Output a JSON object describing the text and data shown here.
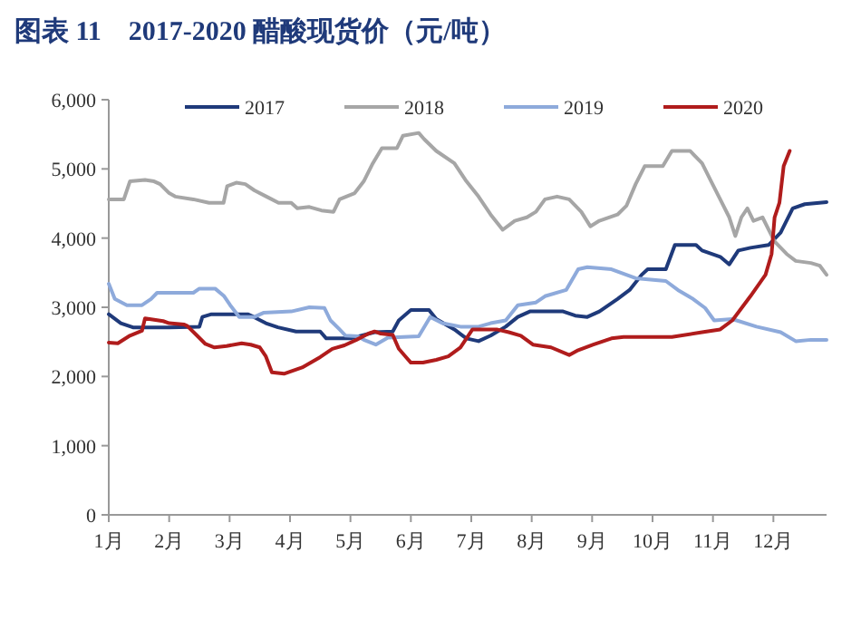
{
  "chart_data": {
    "type": "line",
    "title": "图表 11　2017-2020 醋酸现货价（元/吨）",
    "xlim": [
      1,
      12.88
    ],
    "xticks": [
      {
        "value": 1,
        "label": "1月"
      },
      {
        "value": 2,
        "label": "2月"
      },
      {
        "value": 3,
        "label": "3月"
      },
      {
        "value": 4,
        "label": "4月"
      },
      {
        "value": 5,
        "label": "5月"
      },
      {
        "value": 6,
        "label": "6月"
      },
      {
        "value": 7,
        "label": "7月"
      },
      {
        "value": 8,
        "label": "8月"
      },
      {
        "value": 9,
        "label": "9月"
      },
      {
        "value": 10,
        "label": "10月"
      },
      {
        "value": 11,
        "label": "11月"
      },
      {
        "value": 12,
        "label": "12月"
      }
    ],
    "ylim": [
      0,
      6000
    ],
    "yticks": [
      0,
      {
        "value": 1000,
        "label": "1,000"
      },
      {
        "value": 2000,
        "label": "2,000"
      },
      {
        "value": 3000,
        "label": "3,000"
      },
      {
        "value": 4000,
        "label": "4,000"
      },
      {
        "value": 5000,
        "label": "5,000"
      },
      {
        "value": 6000,
        "label": "6,000"
      }
    ],
    "grid": false,
    "legend": "top",
    "marker": "none",
    "line_style": "solid",
    "series": [
      {
        "name": "2017",
        "color": "#1f3a7a",
        "x": [
          1,
          1.2,
          1.4,
          2.0,
          2.5,
          2.55,
          2.7,
          3.3,
          3.4,
          3.6,
          3.8,
          4.1,
          4.5,
          4.6,
          5.0,
          5.4,
          5.7,
          5.8,
          6.0,
          6.3,
          6.42,
          6.72,
          6.92,
          7.12,
          7.32,
          7.57,
          7.77,
          7.97,
          8.52,
          8.72,
          8.92,
          9.12,
          9.42,
          9.62,
          9.82,
          9.92,
          10.22,
          10.37,
          10.72,
          10.82,
          11.12,
          11.27,
          11.42,
          11.62,
          11.92,
          12.12,
          12.32,
          12.52,
          12.88
        ],
        "values": [
          2900,
          2770,
          2710,
          2710,
          2720,
          2860,
          2900,
          2900,
          2860,
          2770,
          2710,
          2650,
          2650,
          2550,
          2550,
          2640,
          2650,
          2810,
          2960,
          2960,
          2830,
          2680,
          2550,
          2510,
          2590,
          2720,
          2860,
          2940,
          2940,
          2880,
          2860,
          2940,
          3120,
          3250,
          3470,
          3550,
          3550,
          3900,
          3900,
          3820,
          3730,
          3620,
          3820,
          3860,
          3900,
          4080,
          4430,
          4490,
          4520
        ]
      },
      {
        "name": "2018",
        "color": "#a6a6a6",
        "x": [
          1,
          1.25,
          1.35,
          1.6,
          1.75,
          1.85,
          2.0,
          2.1,
          2.4,
          2.66,
          2.9,
          2.96,
          3.11,
          3.26,
          3.41,
          3.61,
          3.81,
          4.02,
          4.12,
          4.32,
          4.52,
          4.72,
          4.82,
          5.07,
          5.22,
          5.37,
          5.52,
          5.77,
          5.87,
          6.13,
          6.22,
          6.42,
          6.72,
          6.92,
          7.12,
          7.32,
          7.52,
          7.72,
          7.92,
          8.07,
          8.22,
          8.42,
          8.62,
          8.82,
          8.97,
          9.12,
          9.42,
          9.57,
          9.72,
          9.87,
          10.17,
          10.32,
          10.62,
          10.82,
          10.97,
          11.12,
          11.27,
          11.37,
          11.47,
          11.57,
          11.67,
          11.82,
          12.02,
          12.22,
          12.37,
          12.62,
          12.77,
          12.88
        ],
        "values": [
          4560,
          4560,
          4820,
          4840,
          4820,
          4780,
          4650,
          4600,
          4560,
          4510,
          4510,
          4750,
          4800,
          4780,
          4690,
          4600,
          4510,
          4510,
          4430,
          4450,
          4400,
          4380,
          4560,
          4650,
          4820,
          5080,
          5300,
          5300,
          5480,
          5520,
          5430,
          5260,
          5080,
          4820,
          4600,
          4340,
          4120,
          4250,
          4300,
          4380,
          4560,
          4600,
          4560,
          4380,
          4170,
          4250,
          4340,
          4470,
          4780,
          5040,
          5040,
          5260,
          5260,
          5080,
          4820,
          4560,
          4300,
          4030,
          4300,
          4430,
          4250,
          4300,
          3950,
          3770,
          3670,
          3640,
          3600,
          3470
        ]
      },
      {
        "name": "2019",
        "color": "#8eaadb",
        "x": [
          1,
          1.1,
          1.3,
          1.55,
          1.7,
          1.8,
          2.4,
          2.5,
          2.76,
          2.91,
          3.01,
          3.16,
          3.41,
          3.56,
          4.02,
          4.32,
          4.57,
          4.67,
          4.82,
          4.92,
          5.12,
          5.22,
          5.42,
          5.62,
          6.13,
          6.32,
          6.52,
          6.82,
          7.12,
          7.32,
          7.57,
          7.77,
          8.07,
          8.22,
          8.57,
          8.77,
          8.92,
          9.32,
          9.72,
          10.22,
          10.42,
          10.67,
          10.87,
          11.02,
          11.32,
          11.72,
          12.12,
          12.37,
          12.62,
          12.88
        ],
        "values": [
          3340,
          3120,
          3030,
          3030,
          3120,
          3210,
          3210,
          3270,
          3270,
          3160,
          3030,
          2860,
          2860,
          2920,
          2940,
          3000,
          2990,
          2810,
          2680,
          2590,
          2580,
          2530,
          2460,
          2560,
          2580,
          2860,
          2770,
          2720,
          2720,
          2770,
          2810,
          3030,
          3070,
          3160,
          3250,
          3550,
          3580,
          3550,
          3420,
          3380,
          3250,
          3120,
          2990,
          2810,
          2830,
          2720,
          2640,
          2510,
          2530,
          2530
        ]
      },
      {
        "name": "2020",
        "color": "#b01c1c",
        "x": [
          1,
          1.15,
          1.35,
          1.55,
          1.6,
          1.9,
          2.0,
          2.25,
          2.3,
          2.45,
          2.6,
          2.75,
          2.95,
          3.2,
          3.35,
          3.5,
          3.6,
          3.7,
          3.9,
          4.2,
          4.5,
          4.7,
          4.9,
          5.1,
          5.3,
          5.4,
          5.5,
          5.7,
          5.8,
          5.9,
          6.0,
          6.2,
          6.42,
          6.62,
          6.82,
          7.02,
          7.42,
          7.62,
          7.82,
          8.02,
          8.32,
          8.62,
          8.77,
          9.02,
          9.32,
          9.52,
          10.32,
          10.82,
          11.12,
          11.32,
          11.62,
          11.87,
          11.97,
          12.02,
          12.1,
          12.17,
          12.27
        ],
        "values": [
          2490,
          2480,
          2590,
          2660,
          2840,
          2800,
          2770,
          2750,
          2730,
          2600,
          2470,
          2420,
          2440,
          2480,
          2460,
          2420,
          2290,
          2060,
          2040,
          2130,
          2280,
          2400,
          2450,
          2530,
          2620,
          2650,
          2620,
          2600,
          2400,
          2300,
          2200,
          2200,
          2240,
          2290,
          2420,
          2680,
          2680,
          2640,
          2590,
          2460,
          2420,
          2310,
          2380,
          2460,
          2550,
          2570,
          2570,
          2640,
          2680,
          2810,
          3160,
          3470,
          3770,
          4300,
          4510,
          5040,
          5260
        ]
      }
    ]
  }
}
